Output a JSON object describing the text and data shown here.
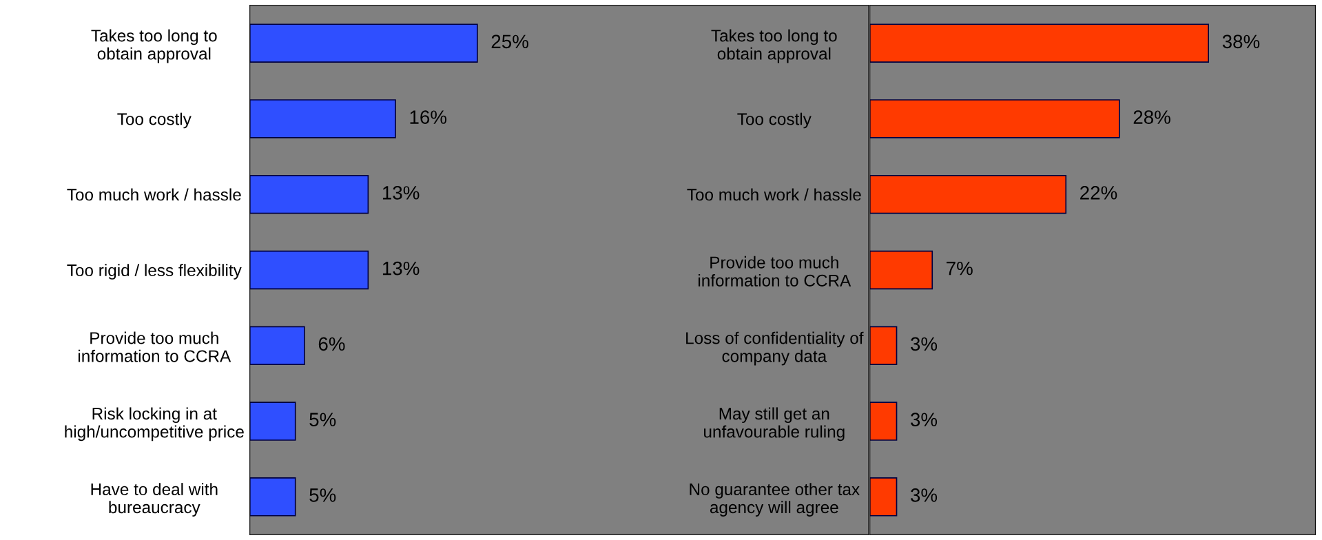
{
  "chart_data": [
    {
      "type": "bar",
      "orientation": "horizontal",
      "categories": [
        "Takes too long to\nobtain approval",
        "Too costly",
        "Too much work / hassle",
        "Too rigid / less flexibility",
        "Provide too much\ninformation to CCRA",
        "Risk locking in at\nhigh/uncompetitive price",
        "Have to deal with\nbureaucracy"
      ],
      "values": [
        25,
        16,
        13,
        13,
        6,
        5,
        5
      ],
      "value_labels": [
        "25%",
        "16%",
        "13%",
        "13%",
        "6%",
        "5%",
        "5%"
      ],
      "color": "#2f4fff",
      "xlim": [
        0,
        68
      ],
      "tick_labels": "y",
      "grid": false
    },
    {
      "type": "bar",
      "orientation": "horizontal",
      "categories": [
        "Takes too long to\nobtain approval",
        "Too costly",
        "Too much work / hassle",
        "Provide too much\ninformation to CCRA",
        "Loss of confidentiality of\ncompany data",
        "May still get an\nunfavourable ruling",
        "No guarantee other tax\nagency will agree"
      ],
      "values": [
        38,
        28,
        22,
        7,
        3,
        3,
        3
      ],
      "value_labels": [
        "38%",
        "28%",
        "22%",
        "7%",
        "3%",
        "3%",
        "3%"
      ],
      "color": "#ff3a00",
      "xlim": [
        0,
        50
      ],
      "tick_labels": "y",
      "grid": false
    }
  ]
}
